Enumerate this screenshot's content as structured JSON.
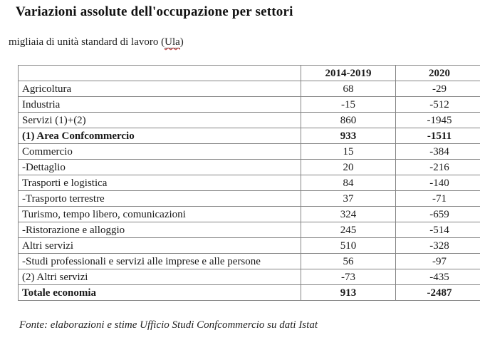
{
  "page": {
    "title": "Variazioni assolute dell'occupazione per settori",
    "subtitle": {
      "prefix": "migliaia di unità standard di lavoro (",
      "term": "Ula",
      "suffix": ")"
    },
    "source_note": "Fonte: elaborazioni e stime Ufficio Studi Confcommercio su dati Istat"
  },
  "table": {
    "columns": [
      "",
      "2014-2019",
      "2020"
    ],
    "rows": [
      {
        "label": "Agricoltura",
        "v1": "68",
        "v2": "-29",
        "bold": false
      },
      {
        "label": "Industria",
        "v1": "-15",
        "v2": "-512",
        "bold": false
      },
      {
        "label": "Servizi (1)+(2)",
        "v1": "860",
        "v2": "-1945",
        "bold": false
      },
      {
        "label": "(1) Area Confcommercio",
        "v1": "933",
        "v2": "-1511",
        "bold": true
      },
      {
        "label": "Commercio",
        "v1": "15",
        "v2": "-384",
        "bold": false
      },
      {
        "label": "-Dettaglio",
        "v1": "20",
        "v2": "-216",
        "bold": false
      },
      {
        "label": "Trasporti e logistica",
        "v1": "84",
        "v2": "-140",
        "bold": false
      },
      {
        "label": "-Trasporto terrestre",
        "v1": "37",
        "v2": "-71",
        "bold": false
      },
      {
        "label": "Turismo, tempo libero, comunicazioni",
        "v1": "324",
        "v2": "-659",
        "bold": false
      },
      {
        "label": "-Ristorazione e alloggio",
        "v1": "245",
        "v2": "-514",
        "bold": false
      },
      {
        "label": "Altri servizi",
        "v1": "510",
        "v2": "-328",
        "bold": false
      },
      {
        "label": "-Studi professionali e servizi alle imprese e alle persone",
        "v1": "56",
        "v2": "-97",
        "bold": false
      },
      {
        "label": "(2) Altri servizi",
        "v1": "-73",
        "v2": "-435",
        "bold": false
      },
      {
        "label": "Totale economia",
        "v1": "913",
        "v2": "-2487",
        "bold": true
      }
    ]
  },
  "colors": {
    "background": "#ffffff",
    "text": "#1a1a1a",
    "table_border": "#858585",
    "squiggle": "#cc3333"
  }
}
